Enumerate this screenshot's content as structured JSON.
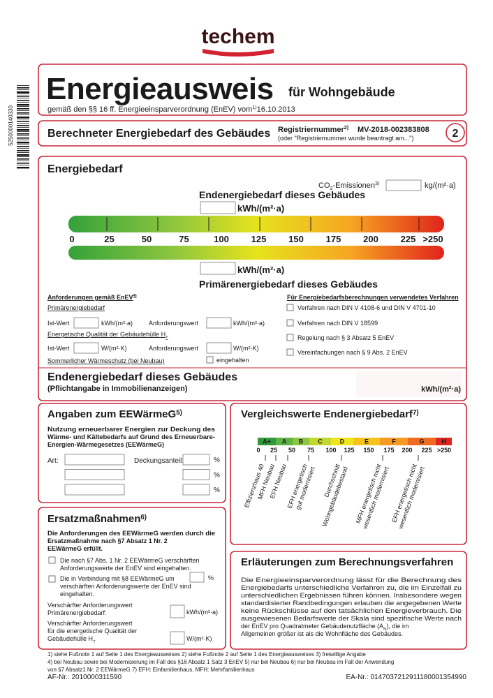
{
  "logo": "techem",
  "barcode": "5250000140330",
  "header": {
    "title": "Energieausweis",
    "suffix": "für Wohngebäude",
    "subtitle": "gemäß den §§ 16 ff. Energieeinsparverordnung (EnEV) vom",
    "note": "1)",
    "date": "16.10.2013"
  },
  "section": {
    "title": "Berechneter Energiebedarf des Gebäudes",
    "reg_label": "Registriernummer",
    "reg_note": "2)",
    "reg_number": "MV-2018-002383808",
    "reg_hint": "(oder \"Registriernummer wurde beantragt am...\")",
    "page": "2"
  },
  "energy": {
    "title": "Energiebedarf",
    "co2": [
      "CO",
      "2",
      "-Emissionen",
      "3)"
    ],
    "co2_unit": "kg/(m²·a)",
    "end_title": "Endenergiebedarf dieses Gebäudes",
    "end_unit": "kWh/(m²·a)",
    "scale": [
      "0",
      "25",
      "50",
      "75",
      "100",
      "125",
      "150",
      "175",
      "200",
      "225",
      ">250"
    ],
    "primary_unit": "kWh/(m²·a)",
    "primary_title": "Primärenergiebedarf dieses Gebäudes"
  },
  "requirements": {
    "title": "Anforderungen gemäß EnEV",
    "note": "4)",
    "primary": "Primärenergiebedarf",
    "primary_row": [
      "Ist-Wert",
      "kWh/(m²·a)",
      "Anforderungswert",
      "kWh/(m²·a)"
    ],
    "envelope": [
      "Energetische Qualität der Gebäudehülle H",
      "T"
    ],
    "envelope_row": [
      "Ist-Wert",
      "W/(m²·K)",
      "Anforderungswert",
      "W/(m²·K)"
    ],
    "summer": "Sommerlicher Wärmeschutz (bei Neubau)",
    "summer_check": "eingehalten"
  },
  "methods": {
    "title": "Für Energiebedarfsberechnungen verwendetes Verfahren",
    "items": [
      "Verfahren nach DIN V 4108-6 und DIN V 4701-10",
      "Verfahren nach DIN V 18599",
      "Regelung nach § 3 Absatz 5 EnEV",
      "Vereinfachungen nach § 9 Abs. 2 EnEV"
    ]
  },
  "final": {
    "title": "Endenergiebedarf dieses Gebäudes",
    "subtitle": "(Pflichtangabe in Immobilienanzeigen)",
    "unit": "kWh/(m²·a)"
  },
  "eewaerme": {
    "title": "Angaben zum EEWärmeG",
    "note": "5)",
    "text": [
      "Nutzung erneuerbarer Energien zur Deckung des",
      "Wärme- und Kältebedarfs auf Grund des Erneuerbare-",
      "Energien-Wärmegesetzes (EEWärmeG)"
    ],
    "art": "Art:",
    "share": "Deckungsanteil:",
    "percent": [
      "%",
      "%",
      "%"
    ]
  },
  "comparison": {
    "title": "Vergleichswerte Endenergiebedarf",
    "note": "7)",
    "classes": [
      "A+",
      "A",
      "B",
      "C",
      "D",
      "E",
      "F",
      "G",
      "H"
    ],
    "scale": [
      "0",
      "25",
      "50",
      "75",
      "100",
      "125",
      "150",
      "175",
      "200",
      "225",
      ">250"
    ],
    "labels": [
      [
        "Effizienzhaus 40"
      ],
      [
        "MFH Neubau"
      ],
      [
        "EFH Neubau"
      ],
      [
        "EFH energetisch",
        "gut modernisiert"
      ],
      [
        "Durchschnitt",
        "Wohngebäudebestand"
      ],
      [
        "MFH energetisch nicht",
        "wesentlich modernisiert"
      ],
      [
        "EFH energetisch nicht",
        "wesentlich modernisiert"
      ]
    ]
  },
  "replacement": {
    "title": "Ersatzmaßnahmen",
    "note": "6)",
    "text": [
      "Die Anforderungen des EEWärmeG werden durch die",
      "Ersatzmaßnahme nach §7 Absatz 1 Nr. 2",
      "EEWärmeG erfüllt."
    ],
    "options": [
      [
        "Die nach §7 Abs. 1 Nr. 2 EEWärmeG verschärften",
        "Anforderungswerte der EnEV sind eingehalten."
      ],
      [
        "Die in Verbindung mit §8 EEWärmeG um",
        "verschärften Anforderungswerte der EnEV sind",
        "eingehalten."
      ]
    ],
    "option_percent": "%",
    "primary": [
      "Verschärfter Anforderungswert",
      "Primärenergiebedarf:"
    ],
    "primary_unit": "kWh/(m²·a)",
    "envelope": [
      "Verschärfter Anforderungswert",
      "für die energetische Qualität der",
      "Gebäudehülle H"
    ],
    "envelope_sub": "T",
    "envelope_unit": "W/(m²·K)"
  },
  "explanation": {
    "title": "Erläuterungen zum Berechnungsverfahren",
    "lines": [
      "Die Energieeinsparverordnung lässt für die Berechnung des",
      "Energiebedarfs unterschiedliche Verfahren zu, die im Einzelfall zu",
      "unterschiedlichen Ergebnissen führen können. Insbesondere wegen",
      "standardisierter Randbedingungen erlauben die angegebenen Werte",
      "keine Rückschlüsse auf den tatsächlichen Energieverbrauch. Die",
      "ausgewiesenen Bedarfswerte der Skala sind spezifische Werte nach"
    ],
    "area_line": [
      "der EnEV pro Quadratmeter Gebäudenutzfläche (A",
      "N",
      "), die im"
    ],
    "last_line": "Allgemeinen größer ist als die Wohnfläche des Gebäudes."
  },
  "footnotes": [
    "1) siehe Fußnote 1 auf Seite 1 des Energieausweises   2) siehe Fußnote 2 auf Seite 1 des Energieausweises   3) freiwillige Angabe",
    "4) bei Neubau sowie bei Modernisierung im Fall des §16 Absatz 1 Satz 3 EnEV   5) nur bei Neubau   6) nur bei Neubau im Fall der Anwendung",
    "von §7 Absatz1 Nr. 2 EEWärmeG   7) EFH: Einfamilienhaus, MFH: Mehrfamilienhaus"
  ],
  "af_number": "AF-Nr.: 2010000311590",
  "ea_number": "EA-Nr.: 0147037212911180001354990"
}
